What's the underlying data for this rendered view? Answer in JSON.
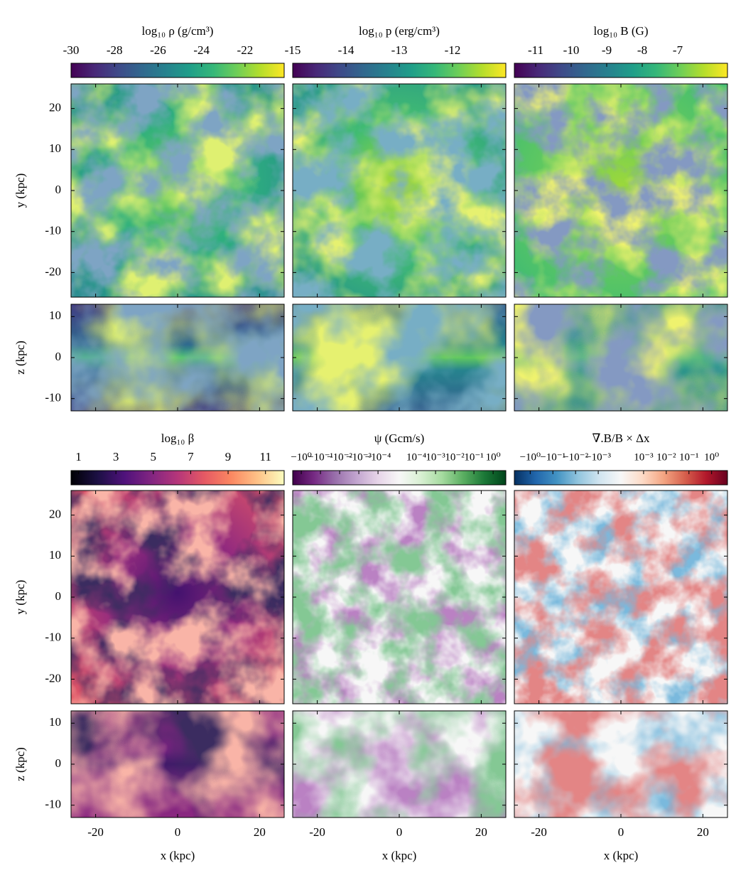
{
  "chart_data": {
    "type": "image_grid",
    "colorbars": [
      {
        "label": "log₁₀ ρ (g/cm³)",
        "cmap": "viridis",
        "scale": "linear",
        "clim": [
          -30,
          -20.2
        ],
        "ticks": [
          -30,
          -28,
          -26,
          -24,
          -22
        ]
      },
      {
        "label": "log₁₀ p (erg/cm³)",
        "cmap": "viridis",
        "scale": "linear",
        "clim": [
          -15,
          -11
        ],
        "ticks": [
          -15,
          -14,
          -13,
          -12
        ]
      },
      {
        "label": "log₁₀ B (G)",
        "cmap": "viridis",
        "scale": "linear",
        "clim": [
          -11.6,
          -5.6
        ],
        "ticks": [
          -11,
          -10,
          -9,
          -8,
          -7
        ]
      },
      {
        "label": "log₁₀ β",
        "cmap": "magma",
        "scale": "linear",
        "clim": [
          0.6,
          12
        ],
        "ticks": [
          1,
          3,
          5,
          7,
          9,
          11
        ]
      },
      {
        "label": "ψ (Gcm/s)",
        "cmap": "PRGn",
        "scale": "symlog",
        "linthresh": 0.0001,
        "clim": [
          -2.8,
          4.6
        ],
        "ticks": [
          {
            "value": -1,
            "label": "−10⁰"
          },
          {
            "value": -0.1,
            "label": "−10⁻¹"
          },
          {
            "value": -0.01,
            "label": "−10⁻²"
          },
          {
            "value": -0.001,
            "label": "−10⁻³"
          },
          {
            "value": -0.0001,
            "label": "−10⁻⁴"
          },
          {
            "value": 0.0001,
            "label": "10⁻⁴"
          },
          {
            "value": 0.001,
            "label": "10⁻³"
          },
          {
            "value": 0.01,
            "label": "10⁻²"
          },
          {
            "value": 0.1,
            "label": "10⁻¹"
          },
          {
            "value": 1,
            "label": "10⁰"
          }
        ]
      },
      {
        "label": "∇.B/B × Δx",
        "cmap": "RdBu_r",
        "scale": "symlog",
        "linthresh": 0.001,
        "clim": [
          -5,
          5
        ],
        "ticks": [
          {
            "value": -1,
            "label": "−10⁰"
          },
          {
            "value": -0.1,
            "label": "−10⁻¹"
          },
          {
            "value": -0.01,
            "label": "−10⁻²"
          },
          {
            "value": -0.001,
            "label": "−10⁻³"
          },
          {
            "value": 0.001,
            "label": "10⁻³"
          },
          {
            "value": 0.01,
            "label": "10⁻²"
          },
          {
            "value": 0.1,
            "label": "10⁻¹"
          },
          {
            "value": 1,
            "label": "10⁰"
          }
        ]
      }
    ],
    "xlim": [
      -26,
      26
    ],
    "xticks": [
      -20,
      0,
      20
    ],
    "xlabel": "x (kpc)",
    "face": {
      "ylim": [
        -26,
        26
      ],
      "yticks": [
        -20,
        -10,
        0,
        10,
        20
      ],
      "ylabel": "y (kpc)"
    },
    "edge": {
      "ylim": [
        -13,
        13
      ],
      "yticks": [
        -10,
        0,
        10
      ],
      "ylabel": "z (kpc)"
    }
  }
}
